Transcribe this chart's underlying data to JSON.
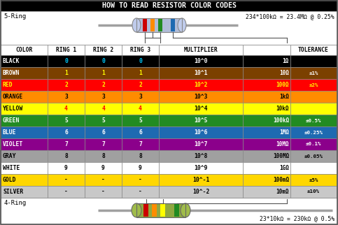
{
  "title": "HOW TO READ RESISTOR COLOR CODES",
  "title_bg": "#000000",
  "title_color": "#ffffff",
  "rows": [
    {
      "name": "BLACK",
      "ring1": "0",
      "ring2": "0",
      "ring3": "0",
      "mult": "10^0",
      "ohm": "1Ω",
      "tol": "",
      "bg": "#000000",
      "fg": "#ffffff",
      "ring_fg": "#00ccff"
    },
    {
      "name": "BROWN",
      "ring1": "1",
      "ring2": "1",
      "ring3": "1",
      "mult": "10^1",
      "ohm": "10Ω",
      "tol": "±1%",
      "bg": "#7B4000",
      "fg": "#ffffff",
      "ring_fg": "#ffff00"
    },
    {
      "name": "RED",
      "ring1": "2",
      "ring2": "2",
      "ring3": "2",
      "mult": "10^2",
      "ohm": "100Ω",
      "tol": "±2%",
      "bg": "#ff0000",
      "fg": "#ffff00",
      "ring_fg": "#ffff00"
    },
    {
      "name": "ORANGE",
      "ring1": "3",
      "ring2": "3",
      "ring3": "3",
      "mult": "10^3",
      "ohm": "1kΩ",
      "tol": "",
      "bg": "#ff8c00",
      "fg": "#000000",
      "ring_fg": "#000000"
    },
    {
      "name": "YELLOW",
      "ring1": "4",
      "ring2": "4",
      "ring3": "4",
      "mult": "10^4",
      "ohm": "10kΩ",
      "tol": "",
      "bg": "#ffff00",
      "fg": "#000000",
      "ring_fg": "#ff0000"
    },
    {
      "name": "GREEN",
      "ring1": "5",
      "ring2": "5",
      "ring3": "5",
      "mult": "10^5",
      "ohm": "100kΩ",
      "tol": "±0.5%",
      "bg": "#228B22",
      "fg": "#ffffff",
      "ring_fg": "#ffffff"
    },
    {
      "name": "BLUE",
      "ring1": "6",
      "ring2": "6",
      "ring3": "6",
      "mult": "10^6",
      "ohm": "1MΩ",
      "tol": "±0.25%",
      "bg": "#1e6ab1",
      "fg": "#ffffff",
      "ring_fg": "#ffffff"
    },
    {
      "name": "VIOLET",
      "ring1": "7",
      "ring2": "7",
      "ring3": "7",
      "mult": "10^7",
      "ohm": "10MΩ",
      "tol": "±0.1%",
      "bg": "#8B008B",
      "fg": "#ffffff",
      "ring_fg": "#ffffff"
    },
    {
      "name": "GRAY",
      "ring1": "8",
      "ring2": "8",
      "ring3": "8",
      "mult": "10^8",
      "ohm": "100MΩ",
      "tol": "±0.05%",
      "bg": "#a0a0a0",
      "fg": "#000000",
      "ring_fg": "#000000"
    },
    {
      "name": "WHITE",
      "ring1": "9",
      "ring2": "9",
      "ring3": "9",
      "mult": "10^9",
      "ohm": "1GΩ",
      "tol": "",
      "bg": "#ffffff",
      "fg": "#000000",
      "ring_fg": "#000000"
    },
    {
      "name": "GOLD",
      "ring1": "-",
      "ring2": "-",
      "ring3": "-",
      "mult": "10^-1",
      "ohm": "100mΩ",
      "tol": "±5%",
      "bg": "#FFD700",
      "fg": "#000000",
      "ring_fg": "#000000"
    },
    {
      "name": "SILVER",
      "ring1": "-",
      "ring2": "-",
      "ring3": "-",
      "mult": "10^-2",
      "ohm": "10mΩ",
      "tol": "±10%",
      "bg": "#c8c8c8",
      "fg": "#000000",
      "ring_fg": "#000000"
    }
  ],
  "outer_bg": "#d0d0d0",
  "resistor5_bands": [
    "#cc0000",
    "#ff8c00",
    "#228B22",
    "#1e6ab1"
  ],
  "resistor4_bands": [
    "#cc0000",
    "#ff8c00",
    "#ffff00",
    "#228B22"
  ]
}
